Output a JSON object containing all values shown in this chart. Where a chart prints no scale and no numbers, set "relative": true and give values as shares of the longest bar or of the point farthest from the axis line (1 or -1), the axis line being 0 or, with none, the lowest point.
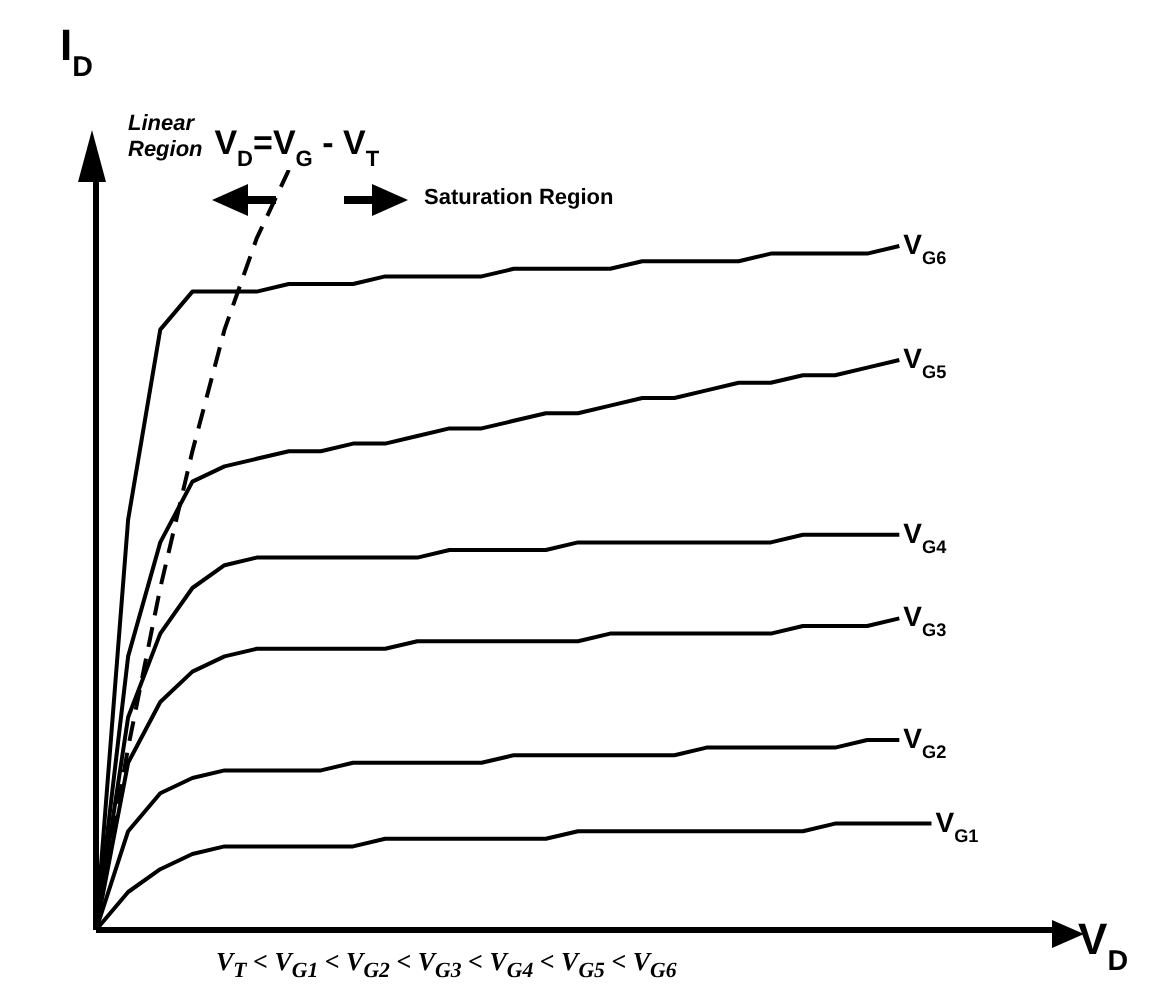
{
  "chart_data": {
    "type": "line",
    "relative": true,
    "xlabel": "V$_{D}$",
    "ylabel": "I$_{D}$",
    "categories": [
      null,
      null,
      null,
      null,
      null,
      null,
      null,
      null,
      null,
      null,
      null,
      null,
      null,
      null,
      null,
      null,
      null,
      null,
      null,
      null,
      null,
      null,
      null,
      null,
      null,
      null,
      null,
      null,
      null,
      null,
      null
    ],
    "series": [
      {
        "name": "V$_{G1}$",
        "color": "#000000",
        "values": [
          0,
          0.05,
          0.08,
          0.1,
          0.11,
          0.11,
          0.11,
          0.11,
          0.11,
          0.12,
          0.12,
          0.12,
          0.12,
          0.12,
          0.12,
          0.13,
          0.13,
          0.13,
          0.13,
          0.13,
          0.13,
          0.13,
          0.13,
          0.14,
          0.14,
          0.14,
          0.14,
          null,
          null,
          null,
          null
        ]
      },
      {
        "name": "V$_{G2}$",
        "color": "#000000",
        "values": [
          0,
          0.13,
          0.18,
          0.2,
          0.21,
          0.21,
          0.21,
          0.21,
          0.22,
          0.22,
          0.22,
          0.22,
          0.22,
          0.23,
          0.23,
          0.23,
          0.23,
          0.23,
          0.23,
          0.24,
          0.24,
          0.24,
          0.24,
          0.24,
          0.25,
          0.25,
          null,
          null,
          null,
          null,
          null
        ]
      },
      {
        "name": "V$_{G3}$",
        "color": "#000000",
        "values": [
          0,
          0.22,
          0.3,
          0.34,
          0.36,
          0.37,
          0.37,
          0.37,
          0.37,
          0.37,
          0.38,
          0.38,
          0.38,
          0.38,
          0.38,
          0.38,
          0.39,
          0.39,
          0.39,
          0.39,
          0.39,
          0.39,
          0.4,
          0.4,
          0.4,
          0.41,
          null,
          null,
          null,
          null,
          null
        ]
      },
      {
        "name": "V$_{G4}$",
        "color": "#000000",
        "values": [
          0,
          0.28,
          0.39,
          0.45,
          0.48,
          0.49,
          0.49,
          0.49,
          0.49,
          0.49,
          0.49,
          0.5,
          0.5,
          0.5,
          0.5,
          0.51,
          0.51,
          0.51,
          0.51,
          0.51,
          0.51,
          0.51,
          0.52,
          0.52,
          0.52,
          0.52,
          null,
          null,
          null,
          null,
          null
        ]
      },
      {
        "name": "V$_{G5}$",
        "color": "#000000",
        "values": [
          0,
          0.36,
          0.51,
          0.59,
          0.61,
          0.62,
          0.63,
          0.63,
          0.64,
          0.64,
          0.65,
          0.66,
          0.66,
          0.67,
          0.68,
          0.68,
          0.69,
          0.7,
          0.7,
          0.71,
          0.72,
          0.72,
          0.73,
          0.73,
          0.74,
          0.75,
          null,
          null,
          null,
          null,
          null
        ]
      },
      {
        "name": "V$_{G6}$",
        "color": "#000000",
        "values": [
          0,
          0.54,
          0.79,
          0.84,
          0.84,
          0.84,
          0.85,
          0.85,
          0.85,
          0.86,
          0.86,
          0.86,
          0.86,
          0.87,
          0.87,
          0.87,
          0.87,
          0.88,
          0.88,
          0.88,
          0.88,
          0.89,
          0.89,
          0.89,
          0.89,
          0.9,
          null,
          null,
          null,
          null,
          null
        ]
      },
      {
        "name": "V$_{D}$=V$_{G}$ - V$_{T}$",
        "color": "#000000",
        "line_style": "dashed",
        "values": [
          0,
          0.24,
          0.45,
          0.63,
          0.79,
          0.91,
          1,
          null,
          null,
          null,
          null,
          null,
          null,
          null,
          null,
          null,
          null,
          null,
          null,
          null,
          null,
          null,
          null,
          null,
          null,
          null,
          null,
          null,
          null,
          null,
          null
        ]
      }
    ],
    "annotations": [
      "Linear Region",
      "Saturation Region",
      "V$_{T}$ < V$_{G1}$ < V$_{G2}$ < V$_{G3}$ < V$_{G4}$ < V$_{G5}$ < V$_{G6}$"
    ],
    "marker": "none",
    "line_style": "solid",
    "legend": false,
    "grid": false
  }
}
